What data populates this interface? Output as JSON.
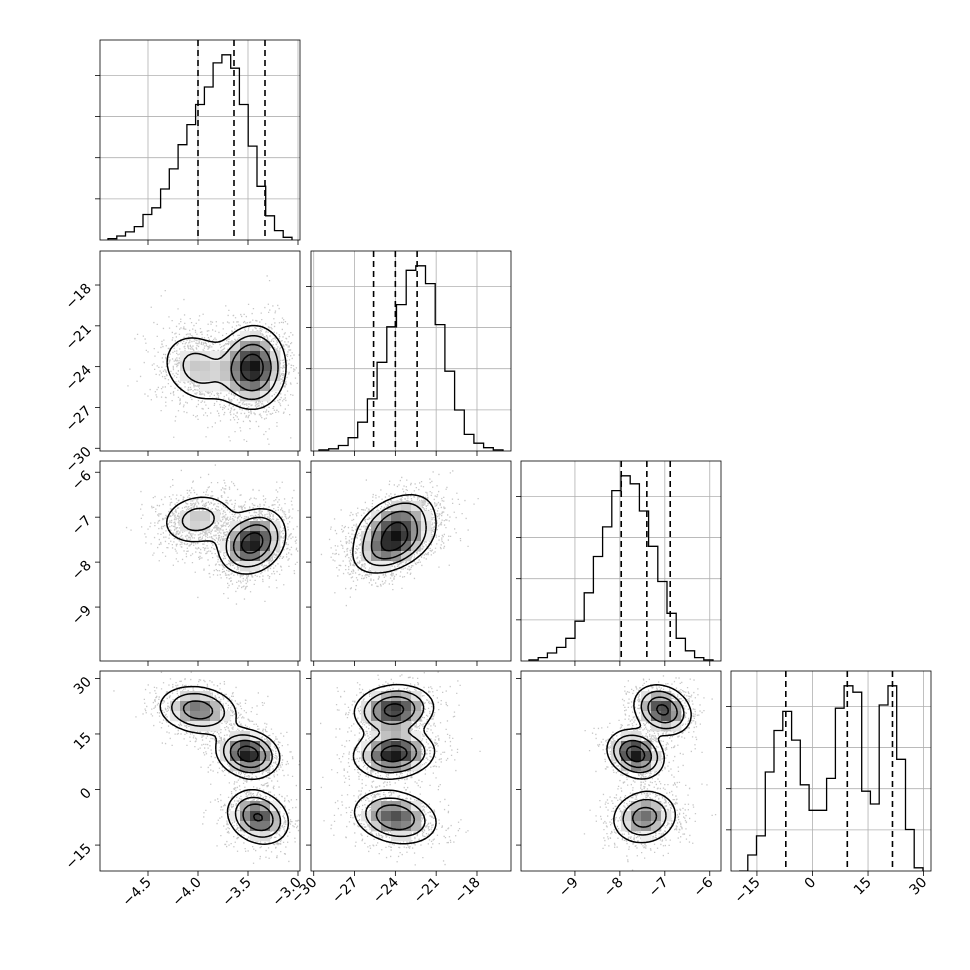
{
  "chart_data": {
    "type": "corner",
    "title": "",
    "grid": true,
    "num_params": 4,
    "params": [
      {
        "range": [
          -4.98,
          -2.98
        ],
        "ticks": [
          -4.5,
          -4.0,
          -3.5,
          -3.0
        ],
        "tick_labels": [
          "−4.5",
          "−4.0",
          "−3.5",
          "−3.0"
        ],
        "quantiles": [
          -4.0,
          -3.64,
          -3.33
        ]
      },
      {
        "range": [
          -30.2,
          -15.5
        ],
        "ticks": [
          -30,
          -27,
          -24,
          -21,
          -18
        ],
        "tick_labels": [
          "−30",
          "−27",
          "−24",
          "−21",
          "−18"
        ],
        "quantiles": [
          -25.6,
          -24.0,
          -22.4
        ]
      },
      {
        "range": [
          -10.2,
          -5.75
        ],
        "ticks": [
          -9,
          -8,
          -7,
          -6
        ],
        "tick_labels": [
          "−9",
          "−8",
          "−7",
          "−6"
        ],
        "quantiles": [
          -7.97,
          -7.4,
          -6.88
        ]
      },
      {
        "range": [
          -22.0,
          32.0
        ],
        "ticks": [
          -15,
          0,
          15,
          30
        ],
        "tick_labels": [
          "−15",
          "0",
          "15",
          "30"
        ],
        "quantiles": [
          -7.2,
          9.4,
          21.6
        ]
      }
    ],
    "histograms": [
      {
        "param": 0,
        "counts": [
          1,
          3,
          6,
          10,
          19,
          24,
          38,
          53,
          71,
          86,
          101,
          114,
          132,
          138,
          128,
          101,
          70,
          40,
          18,
          7,
          2
        ]
      },
      {
        "param": 1,
        "counts": [
          1,
          2,
          5,
          12,
          26,
          47,
          80,
          112,
          132,
          163,
          167,
          151,
          114,
          72,
          37,
          15,
          7,
          3,
          1
        ]
      },
      {
        "param": 2,
        "counts": [
          1,
          3,
          7,
          12,
          20,
          35,
          60,
          92,
          118,
          150,
          163,
          156,
          132,
          101,
          70,
          42,
          20,
          9,
          3,
          1
        ]
      },
      {
        "param": 3,
        "counts": [
          0,
          5,
          11,
          31,
          44,
          50,
          41,
          27,
          19,
          19,
          29,
          51,
          58,
          56,
          25,
          21,
          52,
          58,
          35,
          13,
          1
        ]
      }
    ],
    "modes": [
      {
        "m": [
          -4.0,
          -24.1,
          -7.05,
          21.5
        ],
        "s": [
          0.21,
          1.5,
          0.33,
          3.5
        ],
        "c": [
          -0.2,
          0.15,
          -0.2
        ],
        "w": 0.33
      },
      {
        "m": [
          -3.5,
          -24.1,
          -7.65,
          9.6
        ],
        "s": [
          0.16,
          1.5,
          0.32,
          3.3
        ],
        "c": [
          0.0,
          0.15,
          -0.2
        ],
        "w": 0.34
      },
      {
        "m": [
          -3.4,
          -24.0,
          -7.45,
          -7.5
        ],
        "s": [
          0.16,
          1.6,
          0.38,
          3.8
        ],
        "c": [
          0.0,
          0.2,
          0.1
        ],
        "w": 0.33
      }
    ]
  }
}
